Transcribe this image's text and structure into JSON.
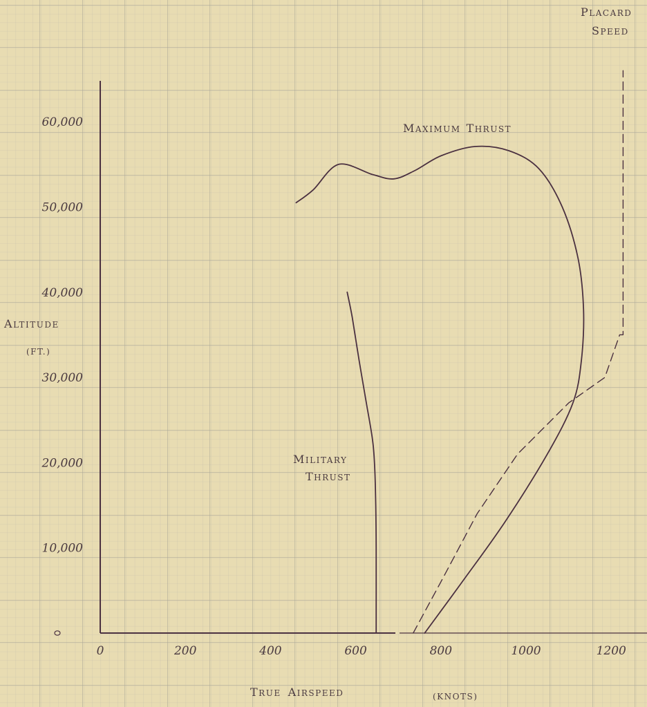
{
  "chart_data": {
    "type": "line",
    "title": "",
    "xlabel": {
      "first": "T",
      "first_rest": "RUE",
      "second": "A",
      "second_rest": "IRSPEED",
      "unit": "(KNOTS)"
    },
    "ylabel": {
      "first": "A",
      "rest": "LTITUDE",
      "unit": "(FT.)"
    },
    "xlim": [
      0,
      1200
    ],
    "ylim": [
      0,
      60000
    ],
    "x_ticks": [
      "0",
      "200",
      "400",
      "600",
      "800",
      "1000",
      "1200"
    ],
    "y_ticks": [
      "0",
      "10,000",
      "20,000",
      "30,000",
      "40,000",
      "50,000",
      "60,000"
    ],
    "grid": true,
    "background_color": "#e8dcb2",
    "grid_color": "#b7b3a3",
    "line_color": "#4a3040",
    "annotations": {
      "maximum_thrust": {
        "first": "M",
        "first_rest": "AXIMUM",
        "second": "T",
        "second_rest": "HRUST"
      },
      "military_thrust": {
        "line1_first": "M",
        "line1_rest": "ILITARY",
        "line2_first": "T",
        "line2_rest": "HRUST"
      },
      "placard_speed": {
        "line1_first": "P",
        "line1_rest": "LACARD",
        "line2_first": "S",
        "line2_rest": "PEED"
      }
    },
    "series": [
      {
        "label_ref": "maximum_thrust",
        "style": "solid",
        "points": [
          [
            762,
            0
          ],
          [
            850,
            6000
          ],
          [
            950,
            13000
          ],
          [
            1050,
            21000
          ],
          [
            1110,
            27000
          ],
          [
            1130,
            32000
          ],
          [
            1135,
            38000
          ],
          [
            1122,
            44000
          ],
          [
            1085,
            50000
          ],
          [
            1030,
            54500
          ],
          [
            960,
            56600
          ],
          [
            880,
            57100
          ],
          [
            800,
            56000
          ],
          [
            740,
            54300
          ],
          [
            690,
            53300
          ],
          [
            640,
            53800
          ],
          [
            560,
            55000
          ],
          [
            500,
            52000
          ],
          [
            460,
            50500
          ]
        ]
      },
      {
        "label_ref": "military_thrust",
        "style": "solid",
        "points": [
          [
            648,
            0
          ],
          [
            648,
            10000
          ],
          [
            647,
            15000
          ],
          [
            645,
            19000
          ],
          [
            640,
            22500
          ],
          [
            625,
            27000
          ],
          [
            608,
            32000
          ],
          [
            592,
            37000
          ],
          [
            580,
            40000
          ]
        ]
      },
      {
        "label_ref": "placard_speed",
        "style": "dashed",
        "points": [
          [
            735,
            0
          ],
          [
            800,
            6000
          ],
          [
            885,
            14000
          ],
          [
            980,
            21000
          ],
          [
            1100,
            27000
          ],
          [
            1185,
            30000
          ],
          [
            1220,
            35000
          ],
          [
            1228,
            35000
          ],
          [
            1228,
            66000
          ]
        ]
      }
    ]
  }
}
